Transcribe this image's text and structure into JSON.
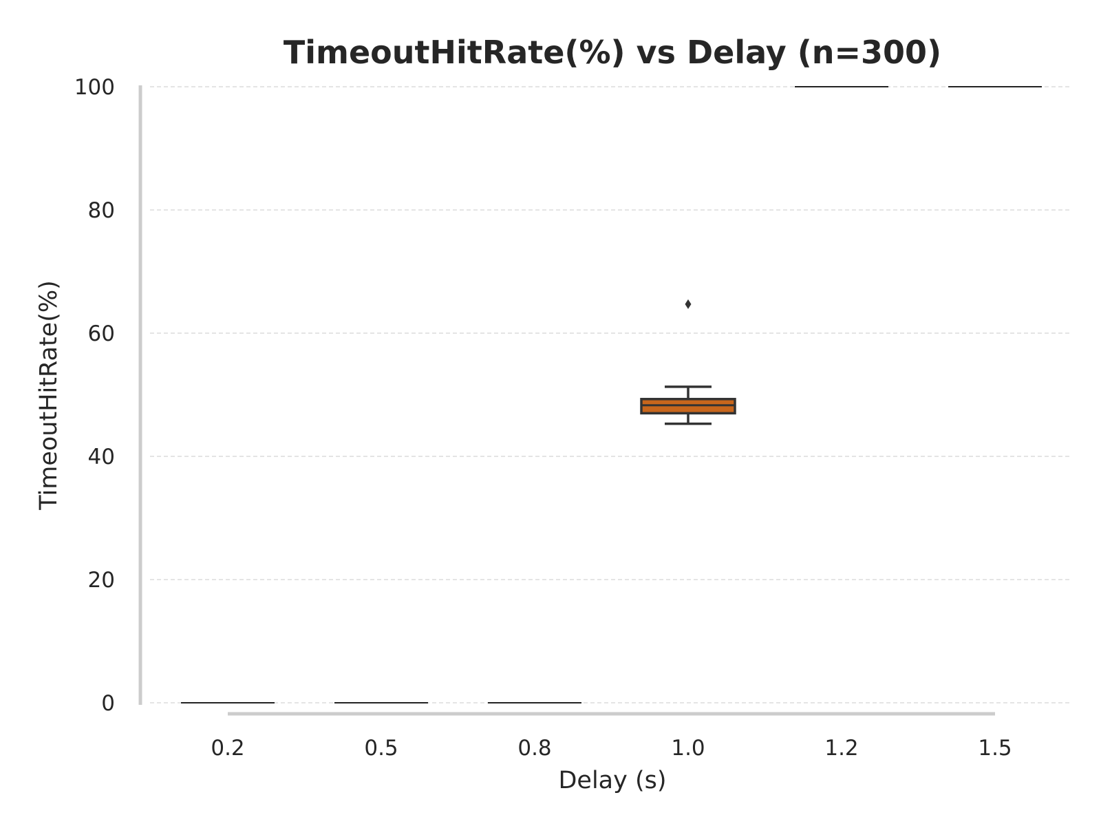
{
  "chart_data": {
    "type": "box",
    "title": "TimeoutHitRate(%) vs Delay (n=300)",
    "xlabel": "Delay (s)",
    "ylabel": "TimeoutHitRate(%)",
    "ylim": [
      0,
      100
    ],
    "y_ticks": [
      "0",
      "20",
      "40",
      "60",
      "80",
      "100"
    ],
    "categories": [
      "0.2",
      "0.5",
      "0.8",
      "1.0",
      "1.2",
      "1.5"
    ],
    "boxes": [
      {
        "category": "0.2",
        "min": 0,
        "q1": 0,
        "median": 0,
        "q3": 0,
        "max": 0,
        "outliers": []
      },
      {
        "category": "0.5",
        "min": 0,
        "q1": 0,
        "median": 0,
        "q3": 0,
        "max": 0,
        "outliers": []
      },
      {
        "category": "0.8",
        "min": 0,
        "q1": 0,
        "median": 0,
        "q3": 0,
        "max": 0,
        "outliers": []
      },
      {
        "category": "1.0",
        "min": 45.3,
        "q1": 47.0,
        "median": 48.3,
        "q3": 49.3,
        "max": 51.3,
        "outliers": [
          64.7
        ]
      },
      {
        "category": "1.2",
        "min": 100,
        "q1": 100,
        "median": 100,
        "q3": 100,
        "max": 100,
        "outliers": []
      },
      {
        "category": "1.5",
        "min": 100,
        "q1": 100,
        "median": 100,
        "q3": 100,
        "max": 100,
        "outliers": []
      }
    ],
    "grid": "horizontal dashed",
    "box_color": "#c8661c",
    "legend": "none"
  }
}
